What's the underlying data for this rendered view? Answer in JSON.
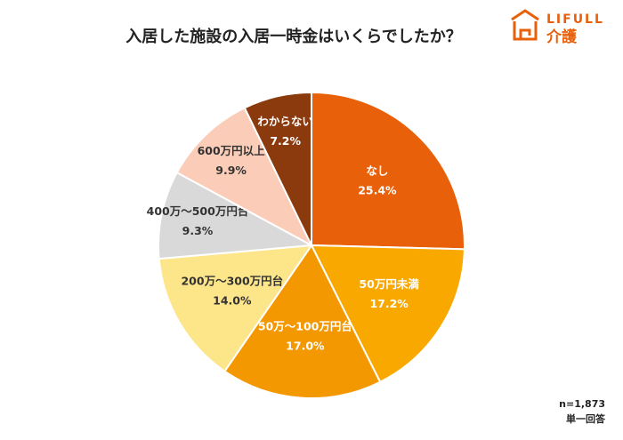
{
  "chart_data": {
    "type": "pie",
    "title": "入居した施設の入居一時金はいくらでしたか？",
    "categories": [
      "なし",
      "50万円未満",
      "50万～100万円台",
      "200万～300万円台",
      "400万～500万円台",
      "600万円以上",
      "わからない"
    ],
    "values": [
      25.4,
      17.2,
      17.0,
      14.0,
      9.3,
      9.9,
      7.2
    ],
    "value_labels": [
      "25.4%",
      "17.2%",
      "17.0%",
      "14.0%",
      "9.3%",
      "9.9%",
      "7.2%"
    ],
    "colors": [
      "#e8600a",
      "#f9a800",
      "#f39800",
      "#fde68a",
      "#d9d9d9",
      "#fbcdb8",
      "#8b3a0e"
    ],
    "notes": [
      "n=1,873",
      "単一回答"
    ]
  },
  "logo": {
    "brand": "LIFULL",
    "service": "介護"
  }
}
